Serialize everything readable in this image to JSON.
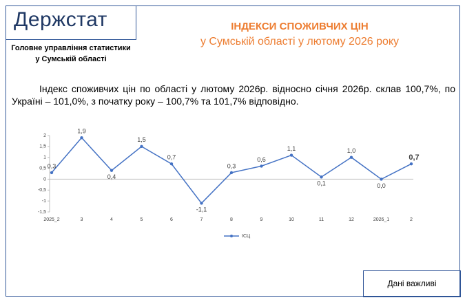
{
  "header": {
    "logo": "Держстат",
    "org": [
      "Головне управління статистики",
      "у Сумській області"
    ],
    "title": "ІНДЕКСИ СПОЖИВЧИХ ЦІН",
    "subtitle": "у Сумській області у лютому 2026 року"
  },
  "paragraph": "Індекс споживчих цін по області у лютому 2026р. відносно січня 2026р. склав 100,7%, по Україні – 101,0%, з початку року – 100,7% та 101,7% відповідно.",
  "chart_data": {
    "type": "line",
    "categories": [
      "2025_2",
      "3",
      "4",
      "5",
      "6",
      "7",
      "8",
      "9",
      "10",
      "11",
      "12",
      "2026_1",
      "2"
    ],
    "series": [
      {
        "name": "ІСЦ",
        "color": "#4472c4",
        "values": [
          0.3,
          1.9,
          0.4,
          1.5,
          0.7,
          -1.1,
          0.3,
          0.6,
          1.1,
          0.1,
          1.0,
          0.0,
          0.7
        ],
        "value_labels": [
          "0,3",
          "1,9",
          "0,4",
          "1,5",
          "0,7",
          "-1,1",
          "0,3",
          "0,6",
          "1,1",
          "0,1",
          "1,0",
          "0,0",
          "0,7"
        ]
      }
    ],
    "ylim": [
      -1.5,
      2
    ],
    "yticks": [
      {
        "value": -1.5,
        "label": "-1,5"
      },
      -1,
      {
        "value": -0.5,
        "label": "-0,5"
      },
      0,
      {
        "value": 0.5,
        "label": "0,5"
      },
      1,
      {
        "value": 1.5,
        "label": "1,5"
      },
      2
    ],
    "legend": "bottom"
  },
  "footer": {
    "note": "Дані важливі"
  }
}
